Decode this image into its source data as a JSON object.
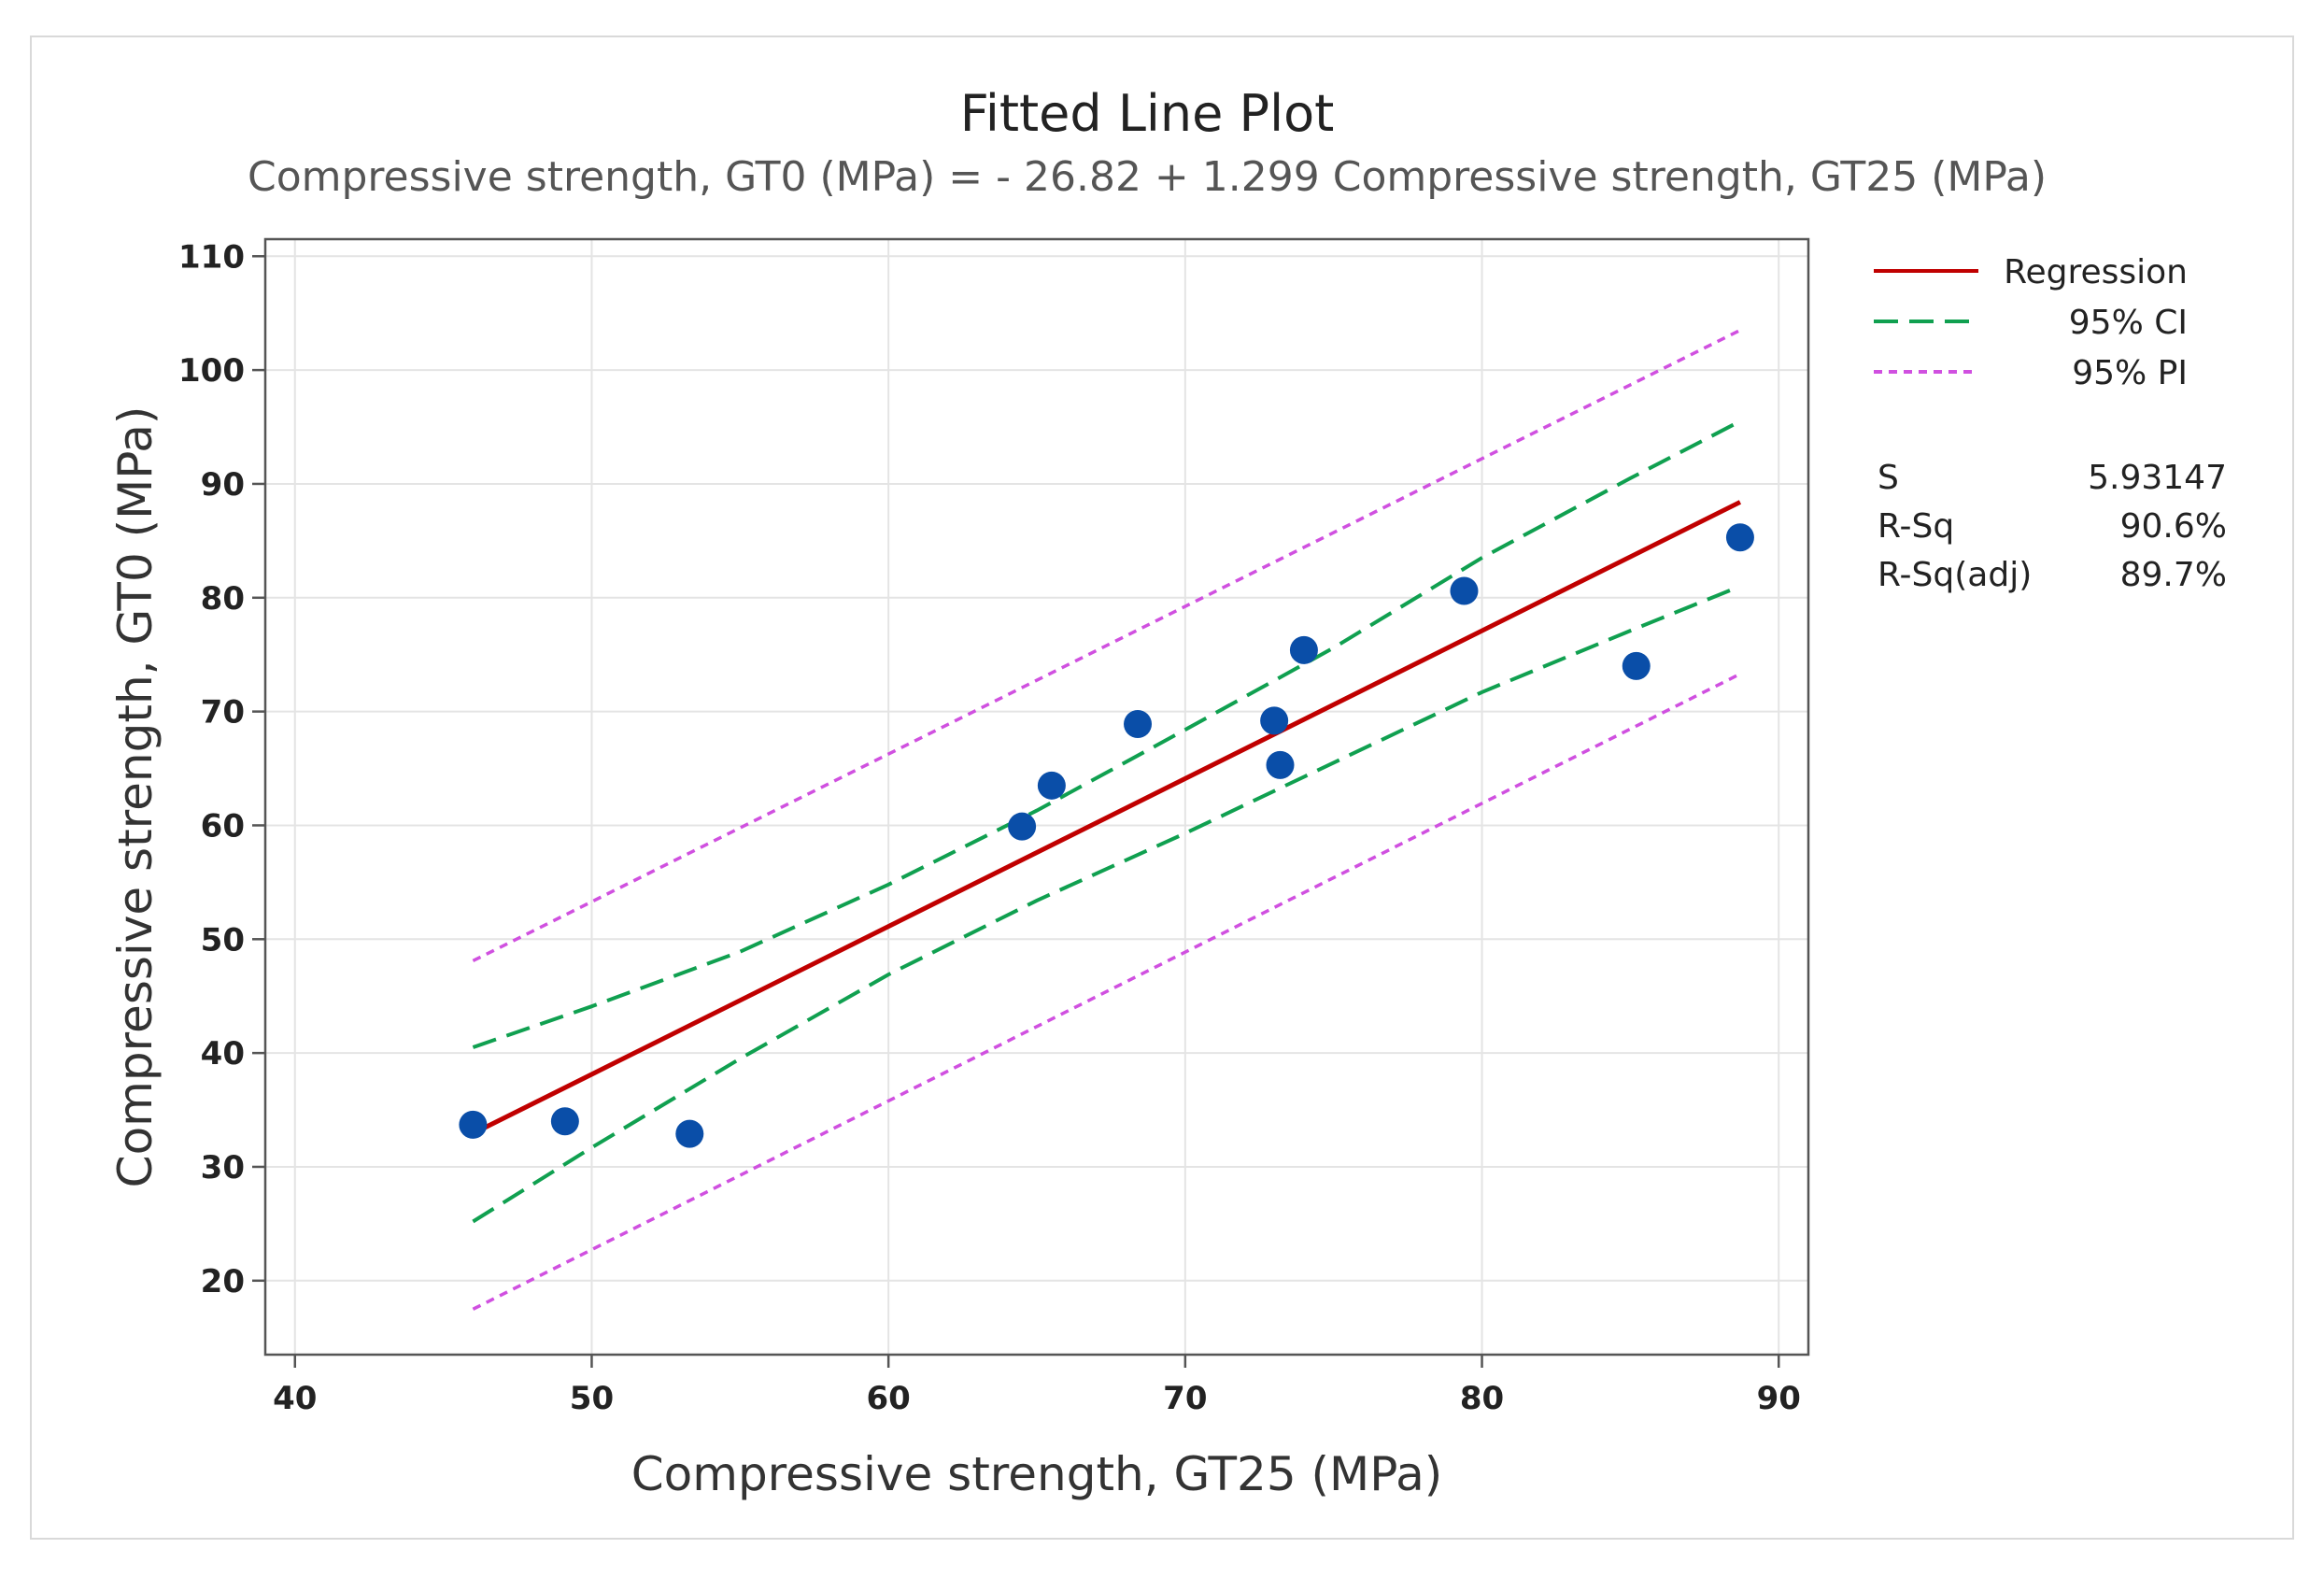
{
  "chart_data": {
    "type": "scatter",
    "title": "Fitted Line Plot",
    "subtitle": "Compressive strength, GT0 (MPa) = - 26.82 + 1.299 Compressive strength, GT25 (MPa)",
    "xlabel": "Compressive strength, GT25 (MPa)",
    "ylabel": "Compressive strength, GT0 (MPa)",
    "xlim": [
      39,
      91
    ],
    "ylim": [
      13.5,
      111.5
    ],
    "xticks": [
      40,
      50,
      60,
      70,
      80,
      90
    ],
    "yticks": [
      20,
      30,
      40,
      50,
      60,
      70,
      80,
      90,
      100,
      110
    ],
    "grid": true,
    "legend_position": "top-right",
    "points": [
      {
        "x": 46.0,
        "y": 33.7
      },
      {
        "x": 49.1,
        "y": 34.0
      },
      {
        "x": 53.3,
        "y": 32.9
      },
      {
        "x": 64.5,
        "y": 59.9
      },
      {
        "x": 65.5,
        "y": 63.5
      },
      {
        "x": 68.4,
        "y": 68.9
      },
      {
        "x": 73.0,
        "y": 69.2
      },
      {
        "x": 73.2,
        "y": 65.3
      },
      {
        "x": 74.0,
        "y": 75.4
      },
      {
        "x": 79.4,
        "y": 80.6
      },
      {
        "x": 85.2,
        "y": 74.0
      },
      {
        "x": 88.7,
        "y": 85.3
      }
    ],
    "regression": {
      "intercept": -26.82,
      "slope": 1.299,
      "x_range": [
        46.0,
        88.7
      ]
    },
    "ci": {
      "x": [
        46.0,
        50.0,
        55.0,
        60.0,
        65.0,
        70.0,
        75.0,
        80.0,
        85.0,
        88.7
      ],
      "lower": [
        25.2,
        31.7,
        39.5,
        46.9,
        53.4,
        59.3,
        65.5,
        71.7,
        77.1,
        81.0
      ],
      "upper": [
        40.5,
        44.1,
        48.9,
        54.8,
        61.3,
        68.4,
        75.6,
        83.5,
        90.5,
        95.5
      ]
    },
    "pi": {
      "x": [
        46.0,
        88.7
      ],
      "lower": [
        17.5,
        73.3
      ],
      "upper": [
        48.1,
        103.5
      ]
    },
    "legend": [
      {
        "label": "Regression",
        "color": "#c00000",
        "style": "solid"
      },
      {
        "label": "95% CI",
        "color": "#10a050",
        "style": "dashed"
      },
      {
        "label": "95% PI",
        "color": "#d050e0",
        "style": "dotted"
      }
    ],
    "stats": [
      {
        "label": "S",
        "value": "5.93147"
      },
      {
        "label": "R-Sq",
        "value": "90.6%"
      },
      {
        "label": "R-Sq(adj)",
        "value": "89.7%"
      }
    ],
    "colors": {
      "points": "#0a4ea8",
      "grid": "#e4e4e4",
      "axis": "#555555"
    }
  }
}
